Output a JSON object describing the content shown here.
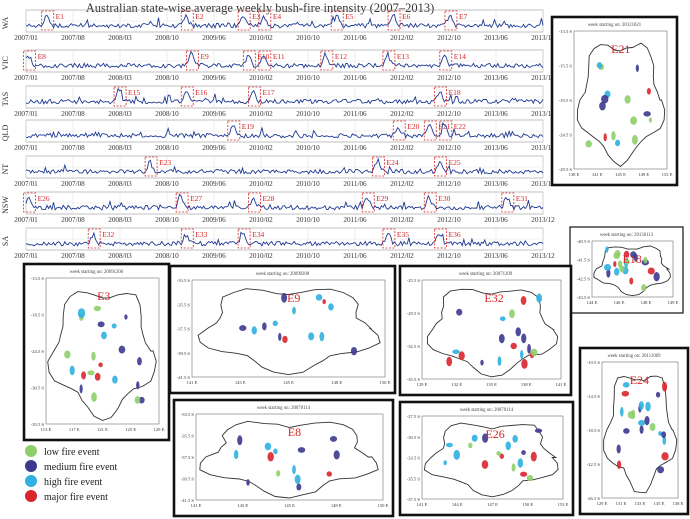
{
  "title": "Australian state-wise average weekly bush-fire intensity (2007–2013)",
  "chart_data": {
    "type": "line",
    "x_ticks": [
      "2007/01",
      "2007/08",
      "2008/03",
      "2008/10",
      "2009/06",
      "2010/02",
      "2010/10",
      "2011/06",
      "2012/02",
      "2012/10",
      "2013/06",
      "2013/12"
    ],
    "series": [
      {
        "name": "WA",
        "events": [
          {
            "label": "E1",
            "t": 0.04
          },
          {
            "label": "E2",
            "t": 0.31
          },
          {
            "label": "E3",
            "t": 0.42
          },
          {
            "label": "E4",
            "t": 0.46
          },
          {
            "label": "E5",
            "t": 0.6
          },
          {
            "label": "E6",
            "t": 0.71
          },
          {
            "label": "E7",
            "t": 0.82
          }
        ],
        "ticks": [
          "2007/01",
          "2007/08",
          "2008/03",
          "2008/10",
          "2009/06",
          "2010/02",
          "2010/10",
          "2011/06",
          "2012/02",
          "2012/10",
          "2013/06",
          "2013/12"
        ]
      },
      {
        "name": "VIC",
        "events": [
          {
            "label": "E8",
            "t": 0.005
          },
          {
            "label": "E9",
            "t": 0.32
          },
          {
            "label": "E10",
            "t": 0.43
          },
          {
            "label": "E11",
            "t": 0.46
          },
          {
            "label": "E12",
            "t": 0.58
          },
          {
            "label": "E13",
            "t": 0.7
          },
          {
            "label": "E14",
            "t": 0.81
          }
        ],
        "ticks": [
          "2007/01",
          "2007/08",
          "2008/03",
          "2008/10",
          "2009/06",
          "2010/02",
          "2010/10",
          "2011/06",
          "2012/02",
          "2012/10",
          "2013/06",
          "2013/12"
        ]
      },
      {
        "name": "TAS",
        "events": [
          {
            "label": "E15",
            "t": 0.18
          },
          {
            "label": "E16",
            "t": 0.31
          },
          {
            "label": "E17",
            "t": 0.44
          },
          {
            "label": "E18",
            "t": 0.8
          }
        ],
        "ticks": [
          "2007/01",
          "2007/08",
          "2008/03",
          "2008/10",
          "2009/06",
          "2010/02",
          "2010/10",
          "2011/06",
          "2012/02",
          "2012/10",
          "2013/06",
          "2013/12"
        ]
      },
      {
        "name": "QLD",
        "events": [
          {
            "label": "E19",
            "t": 0.4
          },
          {
            "label": "E20",
            "t": 0.72
          },
          {
            "label": "E21",
            "t": 0.78
          },
          {
            "label": "E22",
            "t": 0.81
          }
        ],
        "ticks": [
          "2007/01",
          "2007/08",
          "2008/03",
          "2008/10",
          "2009/06",
          "2010/02",
          "2010/10",
          "2011/06",
          "2012/02",
          "2012/10",
          "2013/06",
          "2013/12"
        ]
      },
      {
        "name": "NT",
        "events": [
          {
            "label": "E23",
            "t": 0.24
          },
          {
            "label": "E24",
            "t": 0.68
          },
          {
            "label": "E25",
            "t": 0.8
          }
        ],
        "ticks": [
          "2007/01",
          "2007/08",
          "2008/03",
          "2008/10",
          "2009/06",
          "2010/02",
          "2010/10",
          "2011/06",
          "2012/02",
          "2012/10",
          "2013/06",
          "2013/12"
        ]
      },
      {
        "name": "NSW",
        "events": [
          {
            "label": "E26",
            "t": 0.005
          },
          {
            "label": "E27",
            "t": 0.3
          },
          {
            "label": "E28",
            "t": 0.44
          },
          {
            "label": "E29",
            "t": 0.66
          },
          {
            "label": "E30",
            "t": 0.78
          },
          {
            "label": "E31",
            "t": 0.93
          }
        ],
        "ticks": [
          "2007/01",
          "2007/08",
          "2008/03",
          "2008/10",
          "2009/06",
          "2010/02",
          "2010/10",
          "2011/06",
          "2012/02",
          "2012/10",
          "2013/06",
          "2013/12"
        ]
      },
      {
        "name": "SA",
        "events": [
          {
            "label": "E32",
            "t": 0.13
          },
          {
            "label": "E33",
            "t": 0.31
          },
          {
            "label": "E34",
            "t": 0.42
          },
          {
            "label": "E35",
            "t": 0.7
          },
          {
            "label": "E36",
            "t": 0.8
          }
        ],
        "ticks": [
          "2007/01",
          "2007/08",
          "2008/03",
          "2008/10",
          "2009/06",
          "2010/02",
          "2010/10",
          "2011/06",
          "2012/02",
          "2012/10",
          "2013/06",
          "2013/12"
        ]
      }
    ]
  },
  "maps": [
    {
      "id": "E21",
      "week": "week starting on: 20121021",
      "yt": [
        "-13.5 S",
        "-15.5 S",
        "-19.5 S",
        "-24.5 S",
        "-29.5 S"
      ],
      "xt": [
        "138 E",
        "141 E",
        "145 E",
        "149 E",
        "153 E"
      ]
    },
    {
      "id": "E18",
      "week": "week starting on: 20130113",
      "yt": [
        "-40.5 S",
        "-41.5 S",
        "-42.5 S",
        "-43.5 S"
      ],
      "xt": [
        "144 E",
        "146 E",
        "148 E",
        "149 E"
      ]
    },
    {
      "id": "E3",
      "week": "week starting on: 20091206",
      "yt": [
        "-13.5 S",
        "-18.5 S",
        "-24.5 S",
        "-30.5 S",
        "-35.5 S"
      ],
      "xt": [
        "113 E",
        "117 E",
        "121 E",
        "125 E",
        "129 E"
      ]
    },
    {
      "id": "E9",
      "week": "week starting on: 20090208",
      "yt": [
        "-33.5 S",
        "-35.5 S",
        "-37.5 S",
        "-39.5 S",
        "-41.5 S"
      ],
      "xt": [
        "141 E",
        "143 E",
        "145 E",
        "148 E",
        "150 E"
      ]
    },
    {
      "id": "E32",
      "week": "week starting on: 20071209",
      "yt": [
        "-25.5 S",
        "-29.5 S",
        "-32.5 S",
        "-35.5 S"
      ],
      "xt": [
        "129 E",
        "132 E",
        "135 E",
        "138 E",
        "141 E"
      ]
    },
    {
      "id": "E24",
      "week": "week starting on: 20111009",
      "yt": [
        "-10.5 S",
        "-14.5 S",
        "-18.5 S",
        "-22.5 S",
        "-26.5 S"
      ],
      "xt": [
        "129 E",
        "131 E",
        "133 E",
        "135 E",
        "138 E"
      ]
    },
    {
      "id": "E8",
      "week": "week starting on: 20070114",
      "yt": [
        "-33.5 S",
        "-35.5 S",
        "-37.5 S",
        "-39.5 S",
        "-41.5 S"
      ],
      "xt": [
        "141 E",
        "143 E",
        "145 E",
        "148 E",
        "150 E"
      ]
    },
    {
      "id": "E26",
      "week": "week starting on: 20070114",
      "yt": [
        "-27.5 S",
        "-30.5 S",
        "-33.5 S",
        "-35.5 S",
        "-37.5 S"
      ],
      "xt": [
        "141 E",
        "144 E",
        "147 E",
        "150 E",
        "153 E"
      ]
    }
  ],
  "legend": [
    {
      "label": "low fire event",
      "color": "#8fcf6a"
    },
    {
      "label": "medium fire event",
      "color": "#3c3a8f"
    },
    {
      "label": "high fire event",
      "color": "#2fb0e0"
    },
    {
      "label": "major fire event",
      "color": "#d9262c"
    }
  ]
}
